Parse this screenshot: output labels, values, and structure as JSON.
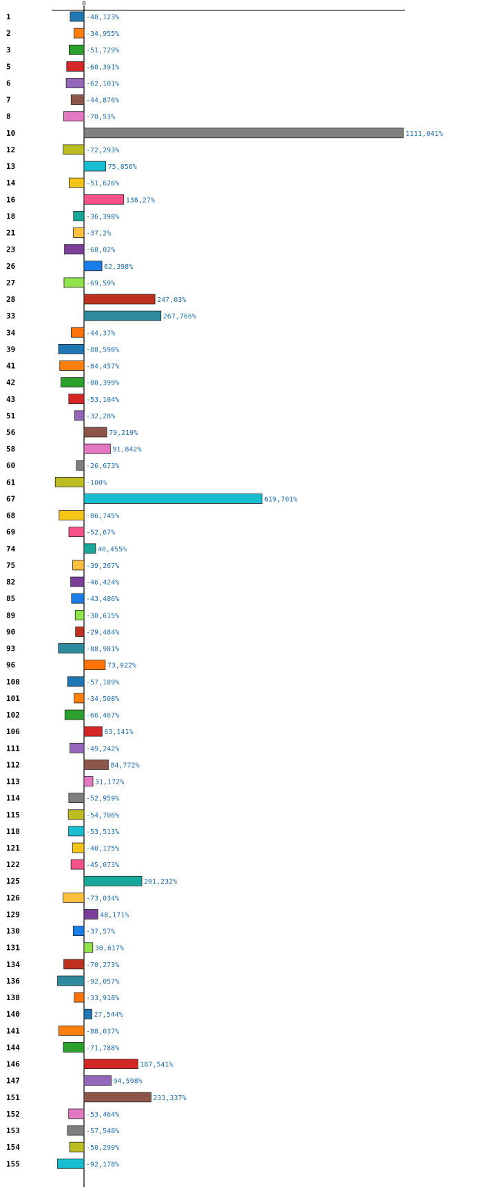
{
  "chart_data": {
    "type": "bar",
    "orientation": "horizontal",
    "title": "",
    "xlabel": "",
    "ylabel": "",
    "zero_tick_label": "0",
    "xlim": [
      -100,
      1111.041
    ],
    "highlight_category": "74",
    "highlight_color": "#e41a1c",
    "value_label_color": "#1f6fb4",
    "palette": [
      "#1f77b4",
      "#ff7f0e",
      "#2ca02c",
      "#d62728",
      "#9467bd",
      "#8c564b",
      "#e377c2",
      "#7f7f7f",
      "#bcbd22",
      "#17becf",
      "#f5c518",
      "#f7518a",
      "#17a89a",
      "#fdbf3c",
      "#7b3f99",
      "#1a7eea",
      "#90e34a",
      "#c0301e",
      "#2e8b9e",
      "#ff7308"
    ],
    "categories": [
      "1",
      "2",
      "3",
      "5",
      "6",
      "7",
      "8",
      "10",
      "12",
      "13",
      "14",
      "16",
      "18",
      "21",
      "23",
      "26",
      "27",
      "28",
      "33",
      "34",
      "39",
      "41",
      "42",
      "43",
      "51",
      "56",
      "58",
      "60",
      "61",
      "67",
      "68",
      "69",
      "74",
      "75",
      "82",
      "85",
      "89",
      "90",
      "93",
      "96",
      "100",
      "101",
      "102",
      "106",
      "111",
      "112",
      "113",
      "114",
      "115",
      "118",
      "121",
      "122",
      "125",
      "126",
      "129",
      "130",
      "131",
      "134",
      "136",
      "138",
      "140",
      "141",
      "144",
      "146",
      "147",
      "151",
      "152",
      "153",
      "154",
      "155"
    ],
    "values": [
      -48.123,
      -34.955,
      -51.729,
      -60.391,
      -62.101,
      -44.876,
      -70.53,
      1111.041,
      -72.293,
      75.856,
      -51.626,
      138.27,
      -36.398,
      -37.2,
      -68.02,
      62.398,
      -69.59,
      247.03,
      267.766,
      -44.37,
      -88.598,
      -84.457,
      -80.399,
      -53.104,
      -32.28,
      79.219,
      91.842,
      -26.673,
      -100,
      619.701,
      -86.745,
      -52.67,
      40.455,
      -39.267,
      -46.424,
      -43.486,
      -30.615,
      -29.484,
      -88.981,
      73.922,
      -57.189,
      -34.508,
      -66.467,
      63.141,
      -49.242,
      84.772,
      31.172,
      -52.959,
      -54.706,
      -53.513,
      -40.175,
      -45.073,
      201.232,
      -73.034,
      48.171,
      -37.57,
      30.617,
      -70.273,
      -92.057,
      -33.918,
      27.544,
      -88.037,
      -71.788,
      187.541,
      94.598,
      233.337,
      -53.464,
      -57.548,
      -50.299,
      -92.178
    ],
    "value_labels": [
      "-48,123%",
      "-34,955%",
      "-51,729%",
      "-60,391%",
      "-62,101%",
      "-44,876%",
      "-70,53%",
      "1111,041%",
      "-72,293%",
      "75,856%",
      "-51,626%",
      "138,27%",
      "-36,398%",
      "-37,2%",
      "-68,02%",
      "62,398%",
      "-69,59%",
      "247,03%",
      "267,766%",
      "-44,37%",
      "-88,598%",
      "-84,457%",
      "-80,399%",
      "-53,104%",
      "-32,28%",
      "79,219%",
      "91,842%",
      "-26,673%",
      "-100%",
      "619,701%",
      "-86,745%",
      "-52,67%",
      "40,455%",
      "-39,267%",
      "-46,424%",
      "-43,486%",
      "-30,615%",
      "-29,484%",
      "-88,981%",
      "73,922%",
      "-57,189%",
      "-34,508%",
      "-66,467%",
      "63,141%",
      "-49,242%",
      "84,772%",
      "31,172%",
      "-52,959%",
      "-54,706%",
      "-53,513%",
      "-40,175%",
      "-45,073%",
      "201,232%",
      "-73,034%",
      "48,171%",
      "-37,57%",
      "30,617%",
      "-70,273%",
      "-92,057%",
      "-33,918%",
      "27,544%",
      "-88,037%",
      "-71,788%",
      "187,541%",
      "94,598%",
      "233,337%",
      "-53,464%",
      "-57,548%",
      "-50,299%",
      "-92,178%"
    ]
  }
}
